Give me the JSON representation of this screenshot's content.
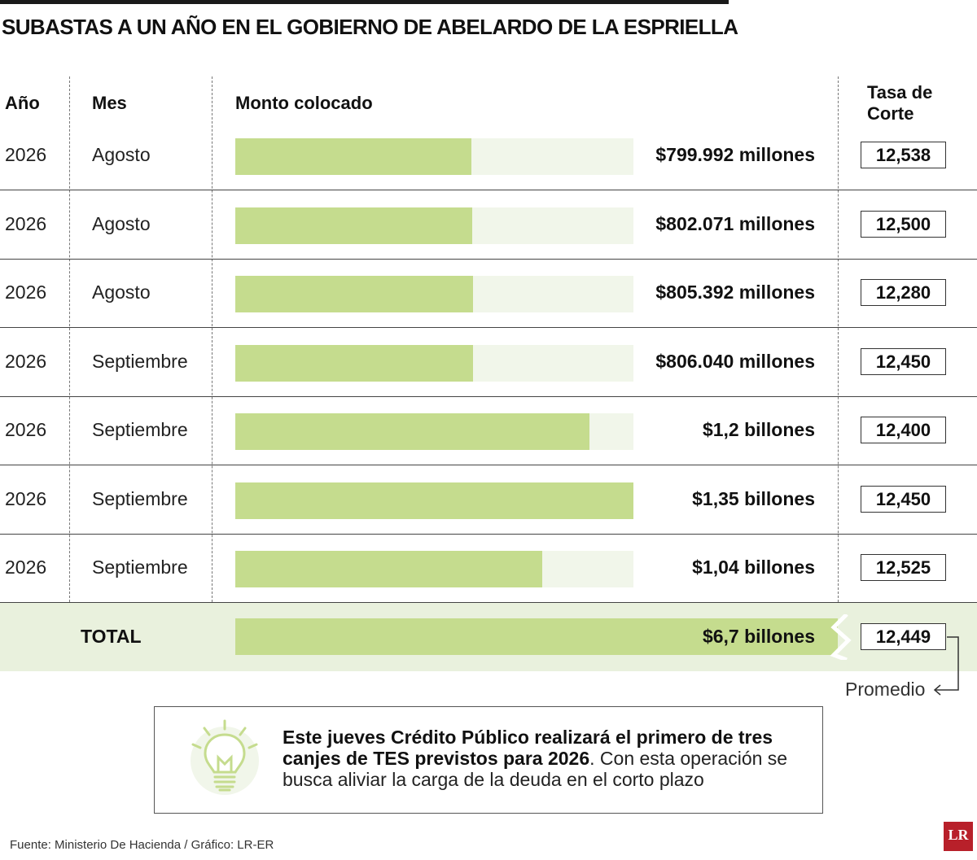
{
  "title": "SUBASTAS A UN AÑO EN EL GOBIERNO DE ABELARDO DE LA ESPRIELLA",
  "headers": {
    "year": "Año",
    "month": "Mes",
    "amount": "Monto colocado",
    "rate_line1": "Tasa de",
    "rate_line2": "Corte"
  },
  "rows": [
    {
      "year": "2026",
      "month": "Agosto",
      "amount": "$799.992 millones",
      "rate": "12,538"
    },
    {
      "year": "2026",
      "month": "Agosto",
      "amount": "$802.071 millones",
      "rate": "12,500"
    },
    {
      "year": "2026",
      "month": "Agosto",
      "amount": "$805.392 millones",
      "rate": "12,280"
    },
    {
      "year": "2026",
      "month": "Septiembre",
      "amount": "$806.040 millones",
      "rate": "12,450"
    },
    {
      "year": "2026",
      "month": "Septiembre",
      "amount": "$1,2 billones",
      "rate": "12,400"
    },
    {
      "year": "2026",
      "month": "Septiembre",
      "amount": "$1,35 billones",
      "rate": "12,450"
    },
    {
      "year": "2026",
      "month": "Septiembre",
      "amount": "$1,04 billones",
      "rate": "12,525"
    }
  ],
  "total": {
    "label": "TOTAL",
    "amount": "$6,7 billones",
    "rate": "12,449",
    "rate_note": "Promedio"
  },
  "note": {
    "bold": "Este jueves Crédito Público realizará el primero de tres canjes de TES previstos para 2026",
    "regular": ". Con esta operación se busca aliviar la carga de la deuda en el corto plazo"
  },
  "footer": "Fuente: Ministerio De Hacienda / Gráfico: LR-ER",
  "logo": "LR",
  "colors": {
    "bar": "#c5dc8e",
    "track": "#f1f6ea",
    "total_band": "#e9f1dd",
    "logo": "#b8202a",
    "bulb": "#c5dc8e"
  },
  "icons": {
    "note": "lightbulb-icon"
  },
  "chart_data": {
    "type": "bar",
    "orientation": "horizontal",
    "title": "SUBASTAS A UN AÑO EN EL GOBIERNO DE ABELARDO DE LA ESPRIELLA",
    "categories": [
      "Agosto",
      "Agosto",
      "Agosto",
      "Septiembre",
      "Septiembre",
      "Septiembre",
      "Septiembre"
    ],
    "series": [
      {
        "values": [
          799992,
          802071,
          805392,
          806040,
          1200000,
          1350000,
          1040000
        ]
      }
    ],
    "total": 6700000,
    "value_unit": "millones de pesos",
    "xlim": [
      0,
      1350000
    ],
    "grid": false
  }
}
